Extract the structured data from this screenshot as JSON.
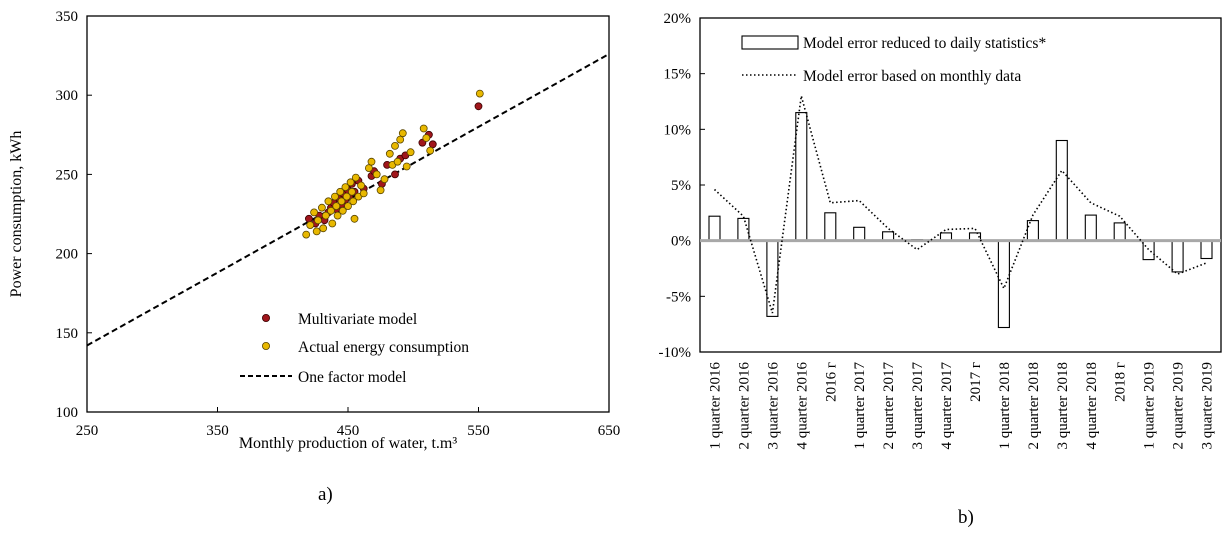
{
  "chart_data": [
    {
      "type": "scatter",
      "panel_label": "a)",
      "xlabel": "Monthly production of water, t.m³",
      "ylabel": "Power consumption, kWh",
      "xlim": [
        250,
        650
      ],
      "ylim": [
        100,
        350
      ],
      "xticks": [
        250,
        350,
        450,
        550,
        650
      ],
      "yticks": [
        100,
        150,
        200,
        250,
        300,
        350
      ],
      "grid": false,
      "legend_position": "bottom-right",
      "series": [
        {
          "name": "Multivariate model",
          "kind": "points",
          "color": "#a0161c",
          "points": [
            [
              420,
              222
            ],
            [
              425,
              219
            ],
            [
              428,
              224
            ],
            [
              432,
              221
            ],
            [
              435,
              226
            ],
            [
              437,
              229
            ],
            [
              439,
              232
            ],
            [
              441,
              228
            ],
            [
              443,
              235
            ],
            [
              445,
              231
            ],
            [
              446,
              238
            ],
            [
              448,
              234
            ],
            [
              450,
              240
            ],
            [
              451,
              236
            ],
            [
              453,
              244
            ],
            [
              455,
              239
            ],
            [
              458,
              246
            ],
            [
              462,
              241
            ],
            [
              468,
              249
            ],
            [
              470,
              252
            ],
            [
              476,
              244
            ],
            [
              480,
              256
            ],
            [
              486,
              250
            ],
            [
              490,
              260
            ],
            [
              494,
              262
            ],
            [
              507,
              270
            ],
            [
              512,
              275
            ],
            [
              515,
              269
            ],
            [
              550,
              293
            ]
          ]
        },
        {
          "name": "Actual energy consumption",
          "kind": "points",
          "color": "#e8b800",
          "points": [
            [
              418,
              212
            ],
            [
              421,
              218
            ],
            [
              424,
              226
            ],
            [
              426,
              214
            ],
            [
              427,
              221
            ],
            [
              430,
              229
            ],
            [
              431,
              216
            ],
            [
              433,
              224
            ],
            [
              435,
              233
            ],
            [
              437,
              227
            ],
            [
              438,
              219
            ],
            [
              440,
              236
            ],
            [
              441,
              230
            ],
            [
              442,
              224
            ],
            [
              444,
              239
            ],
            [
              445,
              233
            ],
            [
              446,
              227
            ],
            [
              448,
              242
            ],
            [
              449,
              236
            ],
            [
              450,
              230
            ],
            [
              452,
              245
            ],
            [
              453,
              239
            ],
            [
              454,
              233
            ],
            [
              455,
              222
            ],
            [
              456,
              248
            ],
            [
              458,
              236
            ],
            [
              460,
              243
            ],
            [
              462,
              238
            ],
            [
              466,
              254
            ],
            [
              468,
              258
            ],
            [
              472,
              250
            ],
            [
              475,
              240
            ],
            [
              478,
              247
            ],
            [
              482,
              263
            ],
            [
              484,
              256
            ],
            [
              486,
              268
            ],
            [
              488,
              258
            ],
            [
              490,
              272
            ],
            [
              492,
              276
            ],
            [
              495,
              255
            ],
            [
              498,
              264
            ],
            [
              508,
              279
            ],
            [
              510,
              273
            ],
            [
              513,
              265
            ],
            [
              551,
              301
            ]
          ]
        },
        {
          "name": "One factor model",
          "kind": "line",
          "color": "#000000",
          "line_points": [
            [
              250,
              142
            ],
            [
              650,
              326
            ]
          ]
        }
      ]
    },
    {
      "type": "bar",
      "panel_label": "b)",
      "ylim": [
        -0.1,
        0.2
      ],
      "yticks": [
        -0.1,
        -0.05,
        0.0,
        0.05,
        0.1,
        0.15,
        0.2
      ],
      "ytick_labels": [
        "-10%",
        "-5%",
        "0%",
        "5%",
        "10%",
        "15%",
        "20%"
      ],
      "grid": false,
      "legend_position": "top-left",
      "categories": [
        "1 quarter 2016",
        "2 quarter 2016",
        "3 quarter 2016",
        "4 quarter 2016",
        "2016 г",
        "1 quarter 2017",
        "2 quarter 2017",
        "3 quarter 2017",
        "4 quarter 2017",
        "2017 г",
        "1 quarter 2018",
        "2 quarter 2018",
        "3 quarter 2018",
        "4 quarter 2018",
        "2018 г",
        "1 quarter 2019",
        "2 quarter 2019",
        "3 quarter 2019"
      ],
      "series": [
        {
          "name": "Model error reduced to daily statistics*",
          "kind": "bar",
          "values": [
            0.022,
            0.02,
            -0.068,
            0.115,
            0.025,
            0.012,
            0.008,
            0.001,
            0.007,
            0.007,
            -0.078,
            0.018,
            0.09,
            0.023,
            0.016,
            -0.017,
            -0.028,
            -0.016
          ]
        },
        {
          "name": "Model error based on monthly data",
          "kind": "dotted-line",
          "values": [
            0.046,
            0.022,
            -0.065,
            0.13,
            0.034,
            0.036,
            0.011,
            -0.008,
            0.01,
            0.011,
            -0.043,
            0.023,
            0.063,
            0.034,
            0.022,
            -0.008,
            -0.03,
            -0.02
          ]
        }
      ]
    }
  ]
}
